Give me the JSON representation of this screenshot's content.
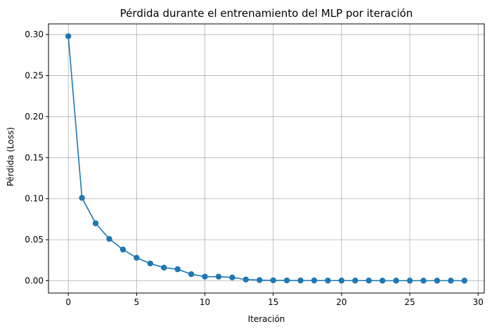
{
  "chart_data": {
    "type": "line",
    "title": "Pérdida durante el entrenamiento del MLP por iteración",
    "xlabel": "Iteración",
    "ylabel": "Pérdida (Loss)",
    "xlim": [
      -1.45,
      30.45
    ],
    "ylim": [
      -0.015,
      0.313
    ],
    "xticks": [
      0,
      5,
      10,
      15,
      20,
      25,
      30
    ],
    "yticks": [
      0.0,
      0.05,
      0.1,
      0.15,
      0.2,
      0.25,
      0.3
    ],
    "xtick_labels": [
      "0",
      "5",
      "10",
      "15",
      "20",
      "25",
      "30"
    ],
    "ytick_labels": [
      "0.00",
      "0.05",
      "0.10",
      "0.15",
      "0.20",
      "0.25",
      "0.30"
    ],
    "grid": true,
    "marker": "circle",
    "color": "#1f77b4",
    "series": [
      {
        "x": [
          0,
          1,
          2,
          3,
          4,
          5,
          6,
          7,
          8,
          9,
          10,
          11,
          12,
          13,
          14,
          15,
          16,
          17,
          18,
          19,
          20,
          21,
          22,
          23,
          24,
          25,
          26,
          27,
          28,
          29
        ],
        "values": [
          0.298,
          0.101,
          0.07,
          0.051,
          0.038,
          0.028,
          0.021,
          0.016,
          0.014,
          0.008,
          0.005,
          0.005,
          0.004,
          0.0015,
          0.0008,
          0.0005,
          0.0004,
          0.0003,
          0.0003,
          0.0002,
          0.0002,
          0.0002,
          0.0002,
          0.0001,
          0.0001,
          0.0001,
          0.0001,
          0.0001,
          0.0001,
          0.0001
        ]
      }
    ]
  }
}
